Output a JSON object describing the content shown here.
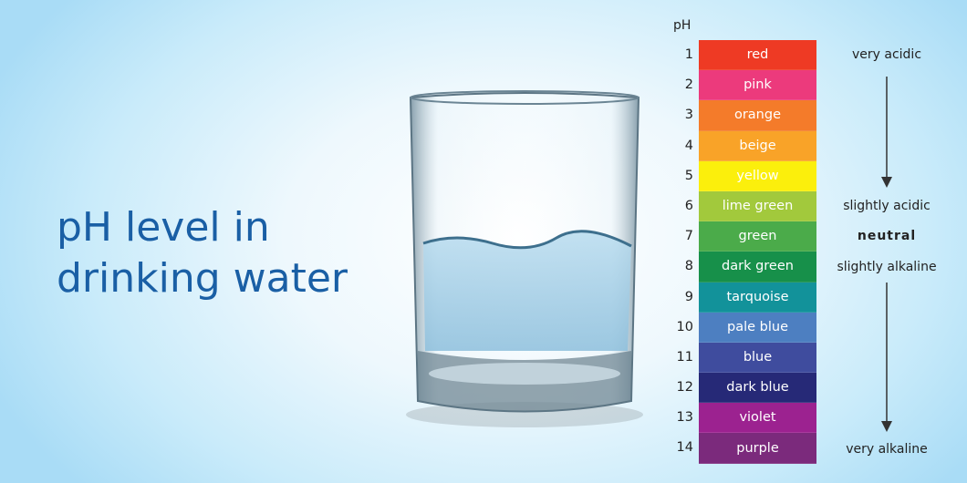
{
  "title": {
    "line1": "pH level in",
    "line2": "drinking water"
  },
  "scale_header": "pH",
  "scale": [
    {
      "ph": "1",
      "label": "red",
      "color": "#ee3a24"
    },
    {
      "ph": "2",
      "label": "pink",
      "color": "#ec3a7c"
    },
    {
      "ph": "3",
      "label": "orange",
      "color": "#f47b2a"
    },
    {
      "ph": "4",
      "label": "beige",
      "color": "#f9a328"
    },
    {
      "ph": "5",
      "label": "yellow",
      "color": "#fbef0c"
    },
    {
      "ph": "6",
      "label": "lime green",
      "color": "#a2c93c"
    },
    {
      "ph": "7",
      "label": "green",
      "color": "#4bab4a"
    },
    {
      "ph": "8",
      "label": "dark green",
      "color": "#17904a"
    },
    {
      "ph": "9",
      "label": "tarquoise",
      "color": "#12929a"
    },
    {
      "ph": "10",
      "label": "pale blue",
      "color": "#4d7fc1"
    },
    {
      "ph": "11",
      "label": "blue",
      "color": "#3f4c9e"
    },
    {
      "ph": "12",
      "label": "dark blue",
      "color": "#262977"
    },
    {
      "ph": "13",
      "label": "violet",
      "color": "#9c2290"
    },
    {
      "ph": "14",
      "label": "purple",
      "color": "#7b2a7c"
    }
  ],
  "annotations": {
    "very_acidic": "very acidic",
    "slightly_acidic": "slightly acidic",
    "neutral": "neutral",
    "slightly_alkaline": "slightly alkaline",
    "very_alkaline": "very alkaline"
  }
}
